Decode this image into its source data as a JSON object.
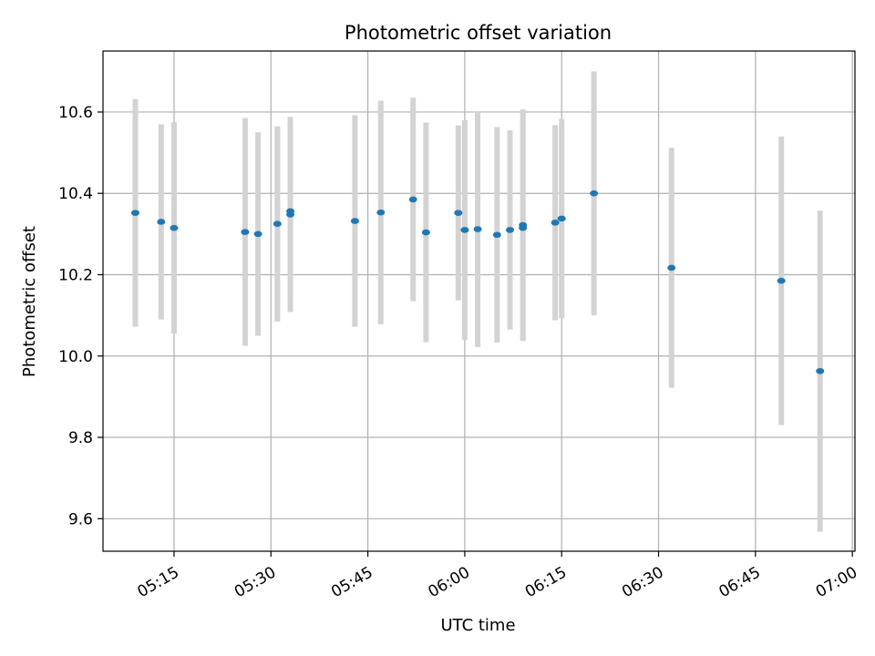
{
  "chart_data": {
    "type": "scatter",
    "title": "Photometric offset variation",
    "xlabel": "UTC time",
    "ylabel": "Photometric offset",
    "x_unit": "minutes",
    "x_ticks": [
      {
        "label": "05:15",
        "value": 315
      },
      {
        "label": "05:30",
        "value": 330
      },
      {
        "label": "05:45",
        "value": 345
      },
      {
        "label": "06:00",
        "value": 360
      },
      {
        "label": "06:15",
        "value": 375
      },
      {
        "label": "06:30",
        "value": 390
      },
      {
        "label": "06:45",
        "value": 405
      },
      {
        "label": "07:00",
        "value": 420
      }
    ],
    "y_ticks": [
      9.6,
      9.8,
      10.0,
      10.2,
      10.4,
      10.6
    ],
    "xlim": [
      304,
      420.4
    ],
    "ylim": [
      9.52,
      10.75
    ],
    "grid": true,
    "colors": {
      "marker": "#1f77b4",
      "errorbar": "#d3d3d3",
      "grid": "#b0b0b0"
    },
    "series": [
      {
        "points": [
          {
            "time": "05:09",
            "y": 10.352,
            "err": 0.28
          },
          {
            "time": "05:13",
            "y": 10.33,
            "err": 0.24
          },
          {
            "time": "05:15",
            "y": 10.315,
            "err": 0.26
          },
          {
            "time": "05:26",
            "y": 10.305,
            "err": 0.28
          },
          {
            "time": "05:28",
            "y": 10.3,
            "err": 0.25
          },
          {
            "time": "05:31",
            "y": 10.325,
            "err": 0.24
          },
          {
            "time": "05:33",
            "y": 10.348,
            "err": 0.24
          },
          {
            "time": "05:33",
            "y": 10.356,
            "err": 0.22
          },
          {
            "time": "05:43",
            "y": 10.332,
            "err": 0.26
          },
          {
            "time": "05:47",
            "y": 10.353,
            "err": 0.275
          },
          {
            "time": "05:52",
            "y": 10.385,
            "err": 0.25
          },
          {
            "time": "05:54",
            "y": 10.304,
            "err": 0.27
          },
          {
            "time": "05:59",
            "y": 10.352,
            "err": 0.215
          },
          {
            "time": "06:00",
            "y": 10.31,
            "err": 0.27
          },
          {
            "time": "06:02",
            "y": 10.312,
            "err": 0.29
          },
          {
            "time": "06:05",
            "y": 10.298,
            "err": 0.265
          },
          {
            "time": "06:07",
            "y": 10.31,
            "err": 0.245
          },
          {
            "time": "06:09",
            "y": 10.322,
            "err": 0.285
          },
          {
            "time": "06:09",
            "y": 10.315,
            "err": 0.275
          },
          {
            "time": "06:14",
            "y": 10.328,
            "err": 0.24
          },
          {
            "time": "06:15",
            "y": 10.338,
            "err": 0.245
          },
          {
            "time": "06:20",
            "y": 10.4,
            "err": 0.3
          },
          {
            "time": "06:32",
            "y": 10.217,
            "err": 0.295
          },
          {
            "time": "06:49",
            "y": 10.185,
            "err": 0.355
          },
          {
            "time": "06:55",
            "y": 9.963,
            "err": 0.395
          }
        ]
      }
    ]
  }
}
